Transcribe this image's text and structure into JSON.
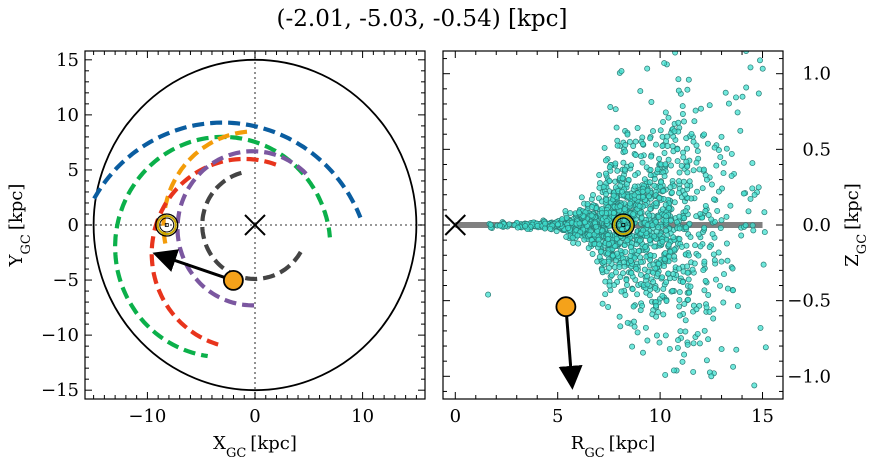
{
  "chart_data": [
    {
      "type": "scatter",
      "panel": "xy",
      "title": "(-2.01, -5.03, -0.54) [kpc]",
      "xlabel": "X",
      "xlabel_sub": "GC",
      "xlabel_unit": "[kpc]",
      "ylabel": "Y",
      "ylabel_sub": "GC",
      "ylabel_unit": "[kpc]",
      "xlim": [
        -15.8,
        15.8
      ],
      "ylim": [
        -15.8,
        15.8
      ],
      "xticks": [
        -10,
        0,
        10
      ],
      "yticks": [
        -15,
        -10,
        -5,
        0,
        5,
        10,
        15
      ],
      "xtick_labels": [
        "−10",
        "0",
        "10"
      ],
      "ytick_labels": [
        "−15",
        "−10",
        "−5",
        "0",
        "5",
        "10",
        "15"
      ],
      "boundary_circle_radius": 15,
      "galactic_center": {
        "x": 0,
        "y": 0,
        "marker": "x"
      },
      "sun": {
        "x": -8.2,
        "y": 0.0,
        "marker": "sun-symbol",
        "color": "#c8a800"
      },
      "object": {
        "x": -2.01,
        "y": -5.03,
        "color": "#f5a21a"
      },
      "velocity_arrow": {
        "from": [
          -2.01,
          -5.03
        ],
        "to": [
          -9.0,
          -2.7
        ]
      },
      "spiral_arms": [
        {
          "color": "#0a5da0",
          "radius": 13.8,
          "theta_start_deg": 150,
          "theta_end_deg": 22,
          "center": [
            -3.0,
            -4.5
          ]
        },
        {
          "color": "#0bb04a",
          "radius": 10.0,
          "theta_start_deg": 88,
          "theta_end_deg": 262,
          "center": [
            -3.0,
            -2.0
          ],
          "part": "a"
        },
        {
          "color": "#0bb04a",
          "radius": 10.0,
          "theta_start_deg": 86,
          "theta_end_deg": 5,
          "center": [
            -3.0,
            -2.0
          ],
          "part": "b"
        },
        {
          "color": "#f39c0a",
          "radius": 8.5,
          "theta_start_deg": 95,
          "theta_end_deg": 195,
          "center": [
            0.0,
            0.0
          ]
        },
        {
          "color": "#e8341c",
          "radius": 8.6,
          "theta_start_deg": 70,
          "theta_end_deg": 255,
          "center": [
            -1.0,
            -2.6
          ]
        },
        {
          "color": "#7b57a0",
          "radius": 7.0,
          "theta_start_deg": 45,
          "theta_end_deg": 275,
          "center": [
            -0.2,
            -0.3
          ]
        },
        {
          "color": "#444444",
          "radius": 4.9,
          "theta_start_deg": 105,
          "theta_end_deg": 330,
          "center": [
            0.0,
            0.0
          ]
        }
      ]
    },
    {
      "type": "scatter",
      "panel": "rz",
      "xlabel": "R",
      "xlabel_sub": "GC",
      "xlabel_unit": "[kpc]",
      "ylabel": "Z",
      "ylabel_sub": "GC",
      "ylabel_unit": "[kpc]",
      "xlim": [
        -0.6,
        16.0
      ],
      "ylim": [
        -1.15,
        1.15
      ],
      "xticks": [
        0,
        5,
        10,
        15
      ],
      "yticks": [
        -1.0,
        -0.5,
        0.0,
        0.5,
        1.0
      ],
      "xtick_labels": [
        "0",
        "5",
        "10",
        "15"
      ],
      "ytick_labels": [
        "−1.0",
        "−0.5",
        "0.0",
        "0.5",
        "1.0"
      ],
      "disk_line": {
        "x": [
          0,
          15
        ],
        "z": 0.0,
        "color": "#808080"
      },
      "galactic_center": {
        "R": 0,
        "Z": 0,
        "marker": "x"
      },
      "sun": {
        "R": 8.2,
        "Z": 0.0,
        "marker": "sun-symbol",
        "color": "#c8a800"
      },
      "object": {
        "R": 5.4,
        "Z": -0.54,
        "color": "#f5a21a"
      },
      "velocity_arrow": {
        "from": [
          5.4,
          -0.54
        ],
        "to": [
          5.7,
          -1.05
        ]
      },
      "cloud": {
        "color": "#40e0d0",
        "edge": "#2a7a74",
        "n_points": 1600,
        "R_range": [
          1.5,
          15.2
        ],
        "peak_R": 8.0,
        "notable_points": [
          {
            "R": 10.2,
            "Z": 1.07
          },
          {
            "R": 14.2,
            "Z": 1.15
          },
          {
            "R": 11.4,
            "Z": 0.96
          },
          {
            "R": 13.5,
            "Z": 0.47
          },
          {
            "R": 14.6,
            "Z": -1.06
          },
          {
            "R": 12.5,
            "Z": -1.0
          },
          {
            "R": 14.9,
            "Z": -0.68
          },
          {
            "R": 1.6,
            "Z": -0.46
          },
          {
            "R": 13.0,
            "Z": -0.82
          }
        ]
      }
    }
  ]
}
